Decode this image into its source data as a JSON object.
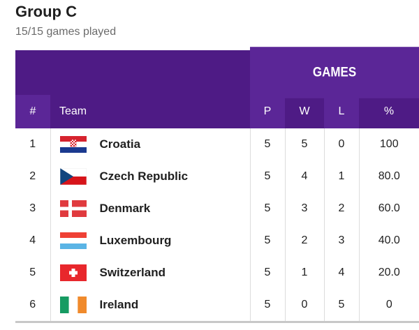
{
  "header": {
    "title": "Group C",
    "subtitle": "15/15 games played"
  },
  "table": {
    "group_header": "GAMES",
    "columns": {
      "rank": "#",
      "team": "Team",
      "played": "P",
      "won": "W",
      "lost": "L",
      "pct": "%"
    },
    "rows": [
      {
        "rank": "1",
        "team": "Croatia",
        "flag": "croatia-flag-icon",
        "played": "5",
        "won": "5",
        "lost": "0",
        "pct": "100"
      },
      {
        "rank": "2",
        "team": "Czech Republic",
        "flag": "czech-flag-icon",
        "played": "5",
        "won": "4",
        "lost": "1",
        "pct": "80.0"
      },
      {
        "rank": "3",
        "team": "Denmark",
        "flag": "denmark-flag-icon",
        "played": "5",
        "won": "3",
        "lost": "2",
        "pct": "60.0"
      },
      {
        "rank": "4",
        "team": "Luxembourg",
        "flag": "luxembourg-flag-icon",
        "played": "5",
        "won": "2",
        "lost": "3",
        "pct": "40.0"
      },
      {
        "rank": "5",
        "team": "Switzerland",
        "flag": "switzerland-flag-icon",
        "played": "5",
        "won": "1",
        "lost": "4",
        "pct": "20.0"
      },
      {
        "rank": "6",
        "team": "Ireland",
        "flag": "ireland-flag-icon",
        "played": "5",
        "won": "0",
        "lost": "5",
        "pct": "0"
      }
    ]
  },
  "colors": {
    "header_dark": "#4e1b85",
    "header_light": "#5b2697"
  }
}
